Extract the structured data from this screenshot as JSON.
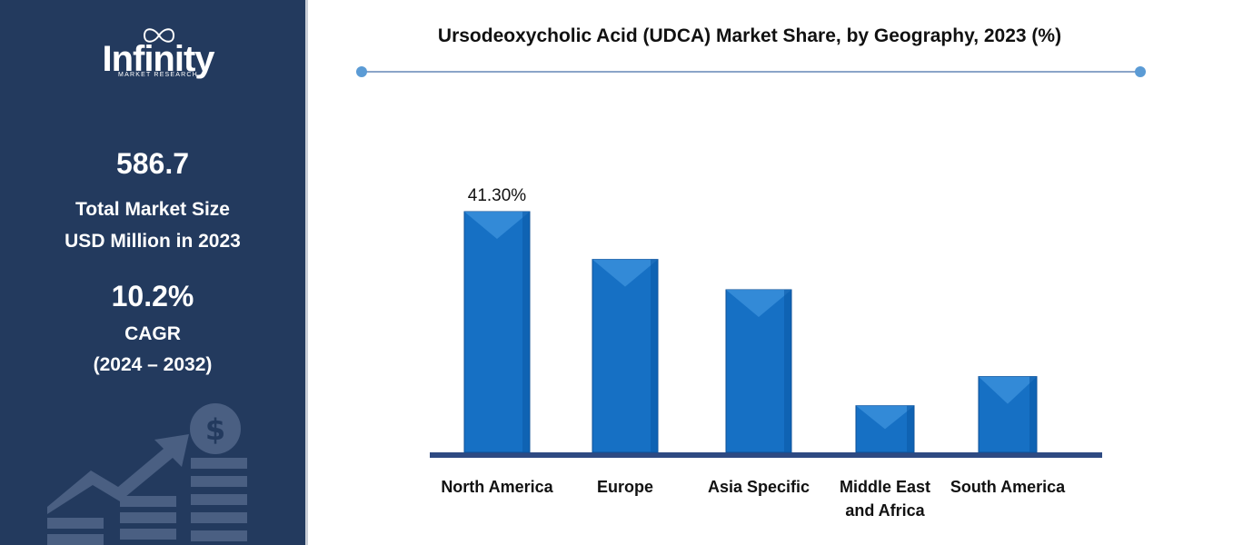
{
  "brand": {
    "name": "Infinity",
    "tagline": "MARKET RESEARCH"
  },
  "stats": {
    "market_size_value": "586.7",
    "market_size_label_line1": "Total Market Size",
    "market_size_label_line2": "USD Million in 2023",
    "cagr_value": "10.2%",
    "cagr_label": "CAGR",
    "cagr_period": "(2024 – 2032)"
  },
  "colors": {
    "panel": "#233a5e",
    "bar": "#1670c4",
    "bar_light": "#3d93de",
    "axis": "#2e4a82",
    "rule": "#5b9bd5"
  },
  "icons": [
    "dollar-coin-icon",
    "growth-arrow-icon"
  ],
  "chart_data": {
    "type": "bar",
    "title": "Ursodeoxycholic Acid (UDCA) Market Share, by Geography, 2023 (%)",
    "categories": [
      "North America",
      "Europe",
      "Asia Specific",
      "Middle East and Africa",
      "South America"
    ],
    "values": [
      41.3,
      33.1,
      27.9,
      8.0,
      13.0
    ],
    "data_labels": [
      "41.30%",
      null,
      null,
      null,
      null
    ],
    "xlabel": "",
    "ylabel": "",
    "ylim": [
      0,
      45
    ],
    "grid": false,
    "legend": "none"
  }
}
